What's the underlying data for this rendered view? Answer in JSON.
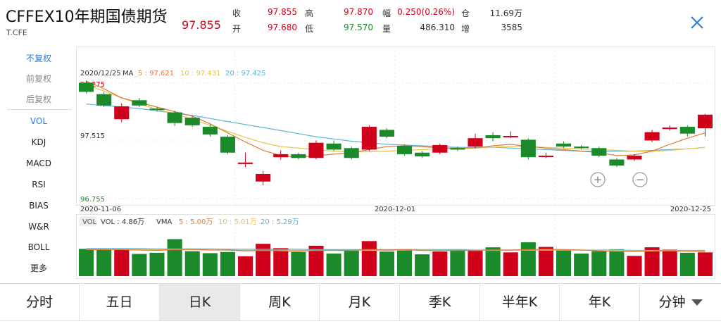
{
  "header": {
    "name": "CFFEX10年期国债期货",
    "code": "T.CFE",
    "last": "97.855",
    "quotes": [
      {
        "label": "收",
        "value": "97.855"
      },
      {
        "label": "高",
        "value": "97.870"
      },
      {
        "label": "幅",
        "value": "0.250(0.26%)"
      },
      {
        "label": "仓",
        "value": "11.69万"
      },
      {
        "label": "开",
        "value": "97.680"
      },
      {
        "label": "低",
        "value": "97.570"
      },
      {
        "label": "量",
        "value": "486.310"
      },
      {
        "label": "增",
        "value": "3585"
      }
    ]
  },
  "menu": [
    "不复权",
    "前复权",
    "后复权",
    "VOL",
    "KDJ",
    "MACD",
    "RSI",
    "BIAS",
    "W&R",
    "BOLL",
    "更多"
  ],
  "ma_legend": {
    "date": "2020/12/25",
    "title": "MA",
    "items": [
      "5 : 97.621",
      "10 : 97.431",
      "20 : 97.425"
    ]
  },
  "price_labels": {
    "top": "98.275",
    "mid": "97.515",
    "bottom": "96.755"
  },
  "date_labels": [
    "2020-11-06",
    "2020-12-01",
    "2020-12-25"
  ],
  "vol_legend": {
    "tag": "VOL",
    "vol": "VOL : 4.86万",
    "vma": "VMA",
    "items": [
      "5 : 5.00万",
      "10 : 5.01万",
      "20 : 5.29万"
    ]
  },
  "zoom": {
    "in": "+",
    "out": "−"
  },
  "tabs": [
    "分时",
    "五日",
    "日K",
    "周K",
    "月K",
    "季K",
    "半年K",
    "年K",
    "分钟"
  ],
  "selected_tab": "日K",
  "colors": {
    "up": "#d0021b",
    "down": "#1a8a2a",
    "ma5": "#e07b3a",
    "ma10": "#e8c44a",
    "ma20": "#5bb4d9",
    "accent": "#2e7bd6"
  },
  "chart_data": {
    "type": "candlestick",
    "dates_shown": [
      "2020-11-06",
      "2020-12-01",
      "2020-12-25"
    ],
    "ylim": [
      96.755,
      98.275
    ],
    "candles": [
      {
        "o": 98.28,
        "c": 98.16,
        "h": 98.31,
        "l": 98.14
      },
      {
        "o": 98.13,
        "c": 97.98,
        "h": 98.16,
        "l": 97.96
      },
      {
        "o": 97.8,
        "c": 97.97,
        "h": 98.01,
        "l": 97.76
      },
      {
        "o": 98.05,
        "c": 97.98,
        "h": 98.08,
        "l": 97.96
      },
      {
        "o": 97.94,
        "c": 97.93,
        "h": 97.96,
        "l": 97.9
      },
      {
        "o": 97.89,
        "c": 97.75,
        "h": 97.91,
        "l": 97.71
      },
      {
        "o": 97.82,
        "c": 97.72,
        "h": 97.84,
        "l": 97.7
      },
      {
        "o": 97.7,
        "c": 97.6,
        "h": 97.74,
        "l": 97.57
      },
      {
        "o": 97.57,
        "c": 97.36,
        "h": 97.59,
        "l": 97.34
      },
      {
        "o": 97.21,
        "c": 97.23,
        "h": 97.36,
        "l": 97.17
      },
      {
        "o": 96.98,
        "c": 97.08,
        "h": 97.12,
        "l": 96.93
      },
      {
        "o": 97.3,
        "c": 97.34,
        "h": 97.39,
        "l": 97.27
      },
      {
        "o": 97.34,
        "c": 97.29,
        "h": 97.36,
        "l": 97.27
      },
      {
        "o": 97.29,
        "c": 97.49,
        "h": 97.52,
        "l": 97.27
      },
      {
        "o": 97.48,
        "c": 97.4,
        "h": 97.52,
        "l": 97.38
      },
      {
        "o": 97.42,
        "c": 97.29,
        "h": 97.44,
        "l": 97.27
      },
      {
        "o": 97.4,
        "c": 97.7,
        "h": 97.72,
        "l": 97.38
      },
      {
        "o": 97.66,
        "c": 97.57,
        "h": 97.68,
        "l": 97.55
      },
      {
        "o": 97.45,
        "c": 97.34,
        "h": 97.47,
        "l": 97.32
      },
      {
        "o": 97.36,
        "c": 97.31,
        "h": 97.38,
        "l": 97.29
      },
      {
        "o": 97.36,
        "c": 97.46,
        "h": 97.48,
        "l": 97.34
      },
      {
        "o": 97.42,
        "c": 97.4,
        "h": 97.44,
        "l": 97.38
      },
      {
        "o": 97.44,
        "c": 97.55,
        "h": 97.61,
        "l": 97.42
      },
      {
        "o": 97.59,
        "c": 97.55,
        "h": 97.63,
        "l": 97.51
      },
      {
        "o": 97.57,
        "c": 97.58,
        "h": 97.64,
        "l": 97.55
      },
      {
        "o": 97.53,
        "c": 97.3,
        "h": 97.55,
        "l": 97.27
      },
      {
        "o": 97.31,
        "c": 97.32,
        "h": 97.36,
        "l": 97.29
      },
      {
        "o": 97.48,
        "c": 97.44,
        "h": 97.51,
        "l": 97.42
      },
      {
        "o": 97.44,
        "c": 97.42,
        "h": 97.46,
        "l": 97.4
      },
      {
        "o": 97.42,
        "c": 97.32,
        "h": 97.44,
        "l": 97.3
      },
      {
        "o": 97.27,
        "c": 97.19,
        "h": 97.29,
        "l": 97.17
      },
      {
        "o": 97.27,
        "c": 97.32,
        "h": 97.34,
        "l": 97.25
      },
      {
        "o": 97.52,
        "c": 97.63,
        "h": 97.66,
        "l": 97.5
      },
      {
        "o": 97.67,
        "c": 97.69,
        "h": 97.72,
        "l": 97.65
      },
      {
        "o": 97.7,
        "c": 97.61,
        "h": 97.72,
        "l": 97.57
      },
      {
        "o": 97.68,
        "c": 97.86,
        "h": 97.87,
        "l": 97.57
      }
    ],
    "volume": [
      7.0,
      7.0,
      6.9,
      5.7,
      6.0,
      9.5,
      6.4,
      5.9,
      6.2,
      5.1,
      8.3,
      7.2,
      6.2,
      7.8,
      5.8,
      6.7,
      9.0,
      6.3,
      6.9,
      5.6,
      6.3,
      6.9,
      6.5,
      7.4,
      6.1,
      8.7,
      7.5,
      6.6,
      5.8,
      6.4,
      6.9,
      5.2,
      7.4,
      6.8,
      6.0,
      6.1
    ],
    "ma5": [
      98.3,
      98.2,
      98.08,
      98.02,
      97.96,
      97.9,
      97.84,
      97.74,
      97.62,
      97.5,
      97.39,
      97.32,
      97.3,
      97.32,
      97.34,
      97.36,
      97.4,
      97.44,
      97.45,
      97.44,
      97.42,
      97.42,
      97.42,
      97.45,
      97.47,
      97.44,
      97.42,
      97.4,
      97.38,
      97.36,
      97.32,
      97.33,
      97.38,
      97.47,
      97.55,
      97.62
    ],
    "ma10": [
      98.25,
      98.17,
      98.08,
      98.0,
      97.93,
      97.87,
      97.8,
      97.72,
      97.64,
      97.56,
      97.49,
      97.44,
      97.42,
      97.4,
      97.38,
      97.37,
      97.37,
      97.38,
      97.39,
      97.4,
      97.41,
      97.41,
      97.42,
      97.43,
      97.44,
      97.44,
      97.43,
      97.42,
      97.41,
      97.4,
      97.39,
      97.38,
      97.38,
      97.39,
      97.41,
      97.43
    ],
    "ma20": [
      98.0,
      97.98,
      97.96,
      97.94,
      97.91,
      97.88,
      97.85,
      97.81,
      97.77,
      97.73,
      97.69,
      97.65,
      97.61,
      97.57,
      97.54,
      97.51,
      97.49,
      97.47,
      97.46,
      97.45,
      97.44,
      97.43,
      97.43,
      97.43,
      97.42,
      97.41,
      97.4,
      97.39,
      97.38,
      97.38,
      97.38,
      97.38,
      97.39,
      97.4,
      97.41,
      97.43
    ],
    "vma5": [
      6.8,
      6.8,
      6.8,
      6.7,
      6.6,
      6.8,
      6.9,
      6.7,
      6.7,
      6.5,
      6.6,
      6.5,
      6.4,
      6.6,
      6.6,
      6.6,
      6.8,
      6.7,
      6.8,
      6.6,
      6.5,
      6.6,
      6.6,
      6.7,
      6.7,
      6.8,
      6.9,
      6.8,
      6.7,
      6.5,
      6.3,
      6.3,
      6.4,
      6.5,
      6.4,
      6.3
    ],
    "vma10": [
      6.9,
      6.9,
      6.9,
      6.8,
      6.8,
      6.8,
      6.8,
      6.7,
      6.7,
      6.6,
      6.6,
      6.6,
      6.6,
      6.6,
      6.6,
      6.6,
      6.6,
      6.6,
      6.7,
      6.7,
      6.6,
      6.6,
      6.6,
      6.6,
      6.6,
      6.7,
      6.7,
      6.7,
      6.7,
      6.6,
      6.6,
      6.5,
      6.5,
      6.5,
      6.5,
      6.4
    ],
    "vma20": [
      7.1,
      7.1,
      7.1,
      7.1,
      7.0,
      7.0,
      7.0,
      7.0,
      6.9,
      6.9,
      6.9,
      6.9,
      6.9,
      6.8,
      6.8,
      6.8,
      6.8,
      6.8,
      6.8,
      6.8,
      6.8,
      6.8,
      6.7,
      6.7,
      6.7,
      6.7,
      6.7,
      6.7,
      6.7,
      6.7,
      6.7,
      6.6,
      6.6,
      6.6,
      6.6,
      6.6
    ]
  }
}
